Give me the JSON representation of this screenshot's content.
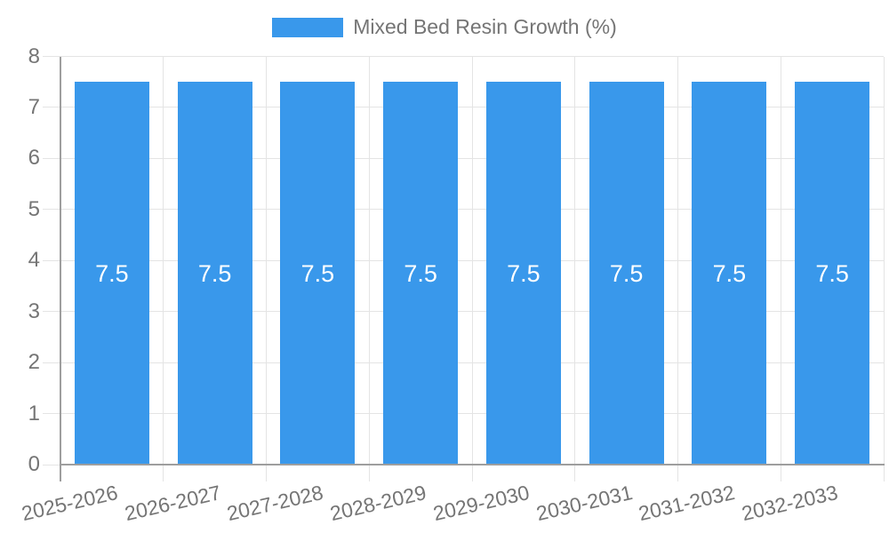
{
  "chart_data": {
    "type": "bar",
    "title": "",
    "xlabel": "",
    "ylabel": "",
    "categories": [
      "2025-2026",
      "2026-2027",
      "2027-2028",
      "2028-2029",
      "2029-2030",
      "2030-2031",
      "2031-2032",
      "2032-2033"
    ],
    "series": [
      {
        "name": "Mixed Bed Resin Growth (%)",
        "values": [
          7.5,
          7.5,
          7.5,
          7.5,
          7.5,
          7.5,
          7.5,
          7.5
        ]
      }
    ],
    "bar_labels": [
      "7.5",
      "7.5",
      "7.5",
      "7.5",
      "7.5",
      "7.5",
      "7.5",
      "7.5"
    ],
    "ylim": [
      0,
      8
    ],
    "y_ticks": [
      0,
      1,
      2,
      3,
      4,
      5,
      6,
      7,
      8
    ],
    "grid": true,
    "legend_position": "top-center",
    "colors": {
      "bar": "#3998EB",
      "bar_label": "#FFFFFF",
      "grid_line": "#E4E4E4",
      "axis_line": "#9E9E9E",
      "tick_label": "#757575",
      "legend_text": "#757575",
      "background": "#FFFFFF"
    }
  }
}
